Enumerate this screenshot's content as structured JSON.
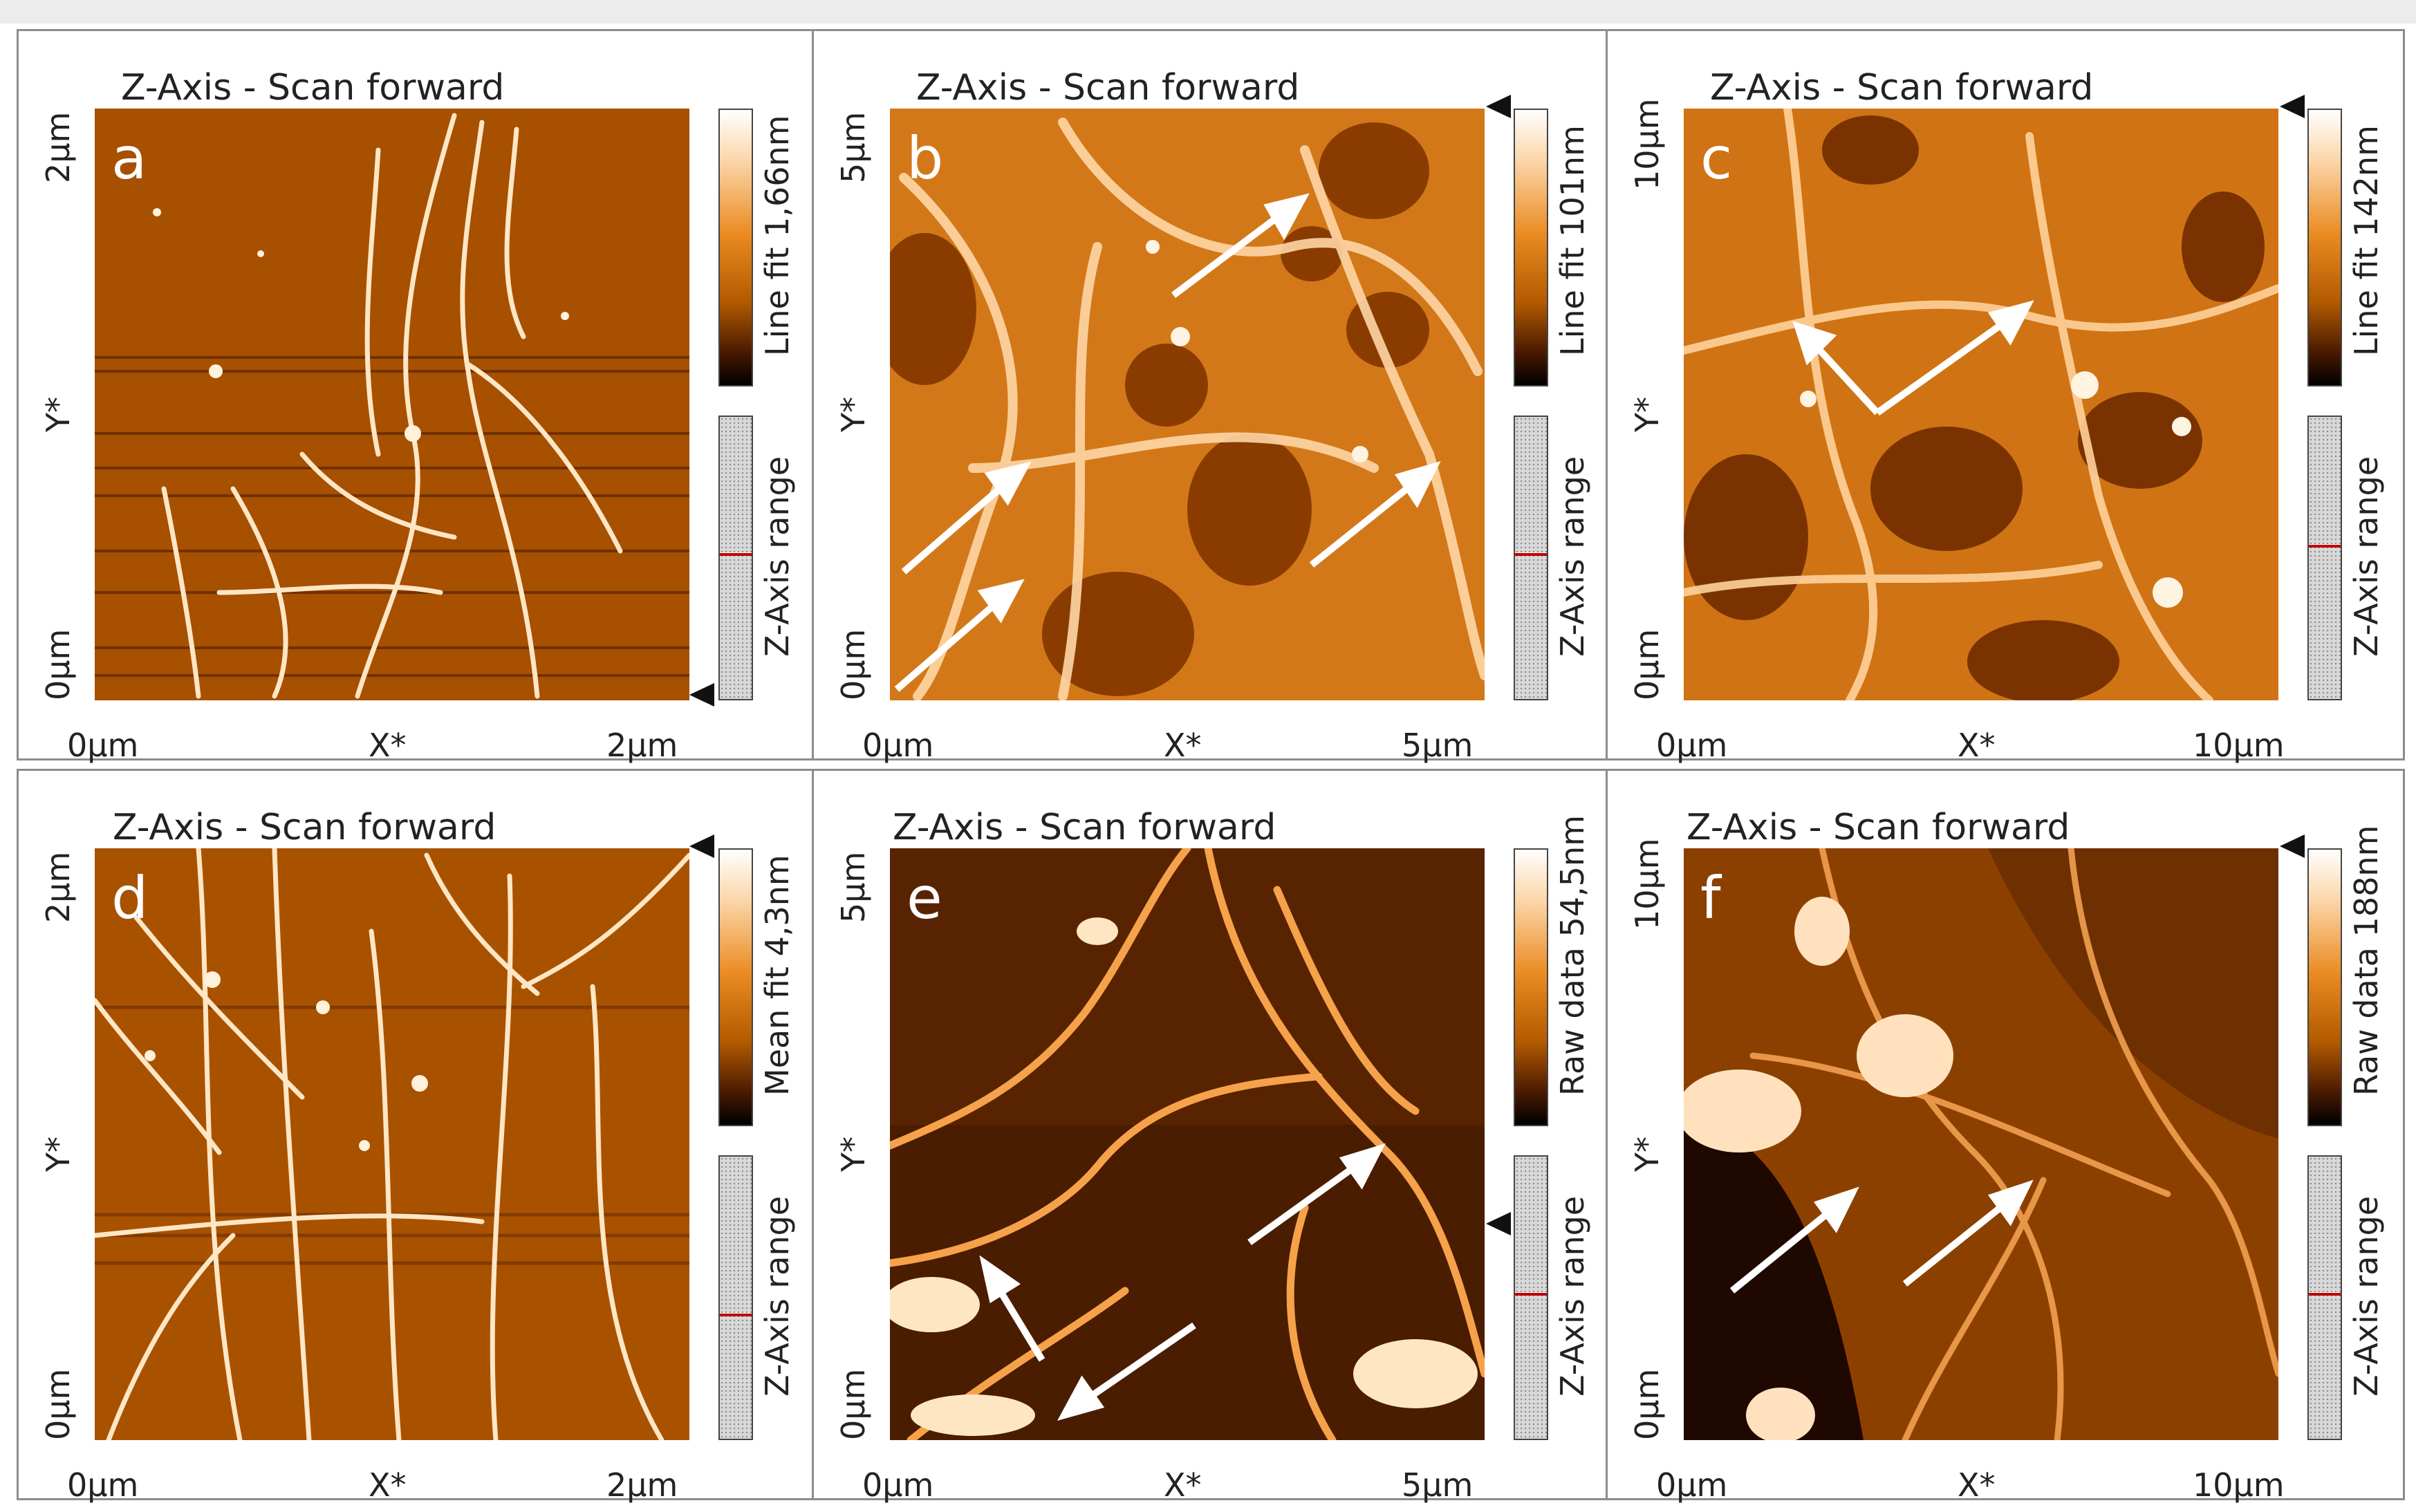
{
  "panels": [
    {
      "id": "a",
      "title": "Z-Axis - Scan forward",
      "letter": "a",
      "x_start": "0µm",
      "x_mid": "X*",
      "x_end": "2µm",
      "y_start": "0µm",
      "y_mid": "Y*",
      "y_end": "2µm",
      "colorbar_label": "Line fit 1,66nm",
      "range_label": "Z-Axis range",
      "range_marker_fraction": 0.48,
      "arrows": 0
    },
    {
      "id": "b",
      "title": "Z-Axis - Scan forward",
      "letter": "b",
      "x_start": "0µm",
      "x_mid": "X*",
      "x_end": "5µm",
      "y_start": "0µm",
      "y_mid": "Y*",
      "y_end": "5µm",
      "colorbar_label": "Line fit 101nm",
      "range_label": "Z-Axis range",
      "range_marker_fraction": 0.48,
      "arrows": 4
    },
    {
      "id": "c",
      "title": "Z-Axis - Scan forward",
      "letter": "c",
      "x_start": "0µm",
      "x_mid": "X*",
      "x_end": "10µm",
      "y_start": "0µm",
      "y_mid": "Y*",
      "y_end": "10µm",
      "colorbar_label": "Line fit 142nm",
      "range_label": "Z-Axis range",
      "range_marker_fraction": 0.45,
      "arrows": 2
    },
    {
      "id": "d",
      "title": "Z-Axis - Scan forward",
      "letter": "d",
      "x_start": "0µm",
      "x_mid": "X*",
      "x_end": "2µm",
      "y_start": "0µm",
      "y_mid": "Y*",
      "y_end": "2µm",
      "colorbar_label": "Mean fit 4,3nm",
      "range_label": "Z-Axis range",
      "range_marker_fraction": 0.55,
      "arrows": 0
    },
    {
      "id": "e",
      "title": "Z-Axis - Scan forward",
      "letter": "e",
      "x_start": "0µm",
      "x_mid": "X*",
      "x_end": "5µm",
      "y_start": "0µm",
      "y_mid": "Y*",
      "y_end": "5µm",
      "colorbar_label": "Raw data 54,5nm",
      "range_label": "Z-Axis range",
      "range_marker_fraction": 0.48,
      "arrows": 3
    },
    {
      "id": "f",
      "title": "Z-Axis - Scan forward",
      "letter": "f",
      "x_start": "0µm",
      "x_mid": "X*",
      "x_end": "10µm",
      "y_start": "0µm",
      "y_mid": "Y*",
      "y_end": "10µm",
      "colorbar_label": "Raw data 188nm",
      "range_label": "Z-Axis range",
      "range_marker_fraction": 0.48,
      "arrows": 2
    }
  ],
  "colors": {
    "afm_dark": "#6e3400",
    "afm_mid": "#c86a10",
    "afm_light": "#ffe9c8",
    "arrow": "#ffffff"
  }
}
